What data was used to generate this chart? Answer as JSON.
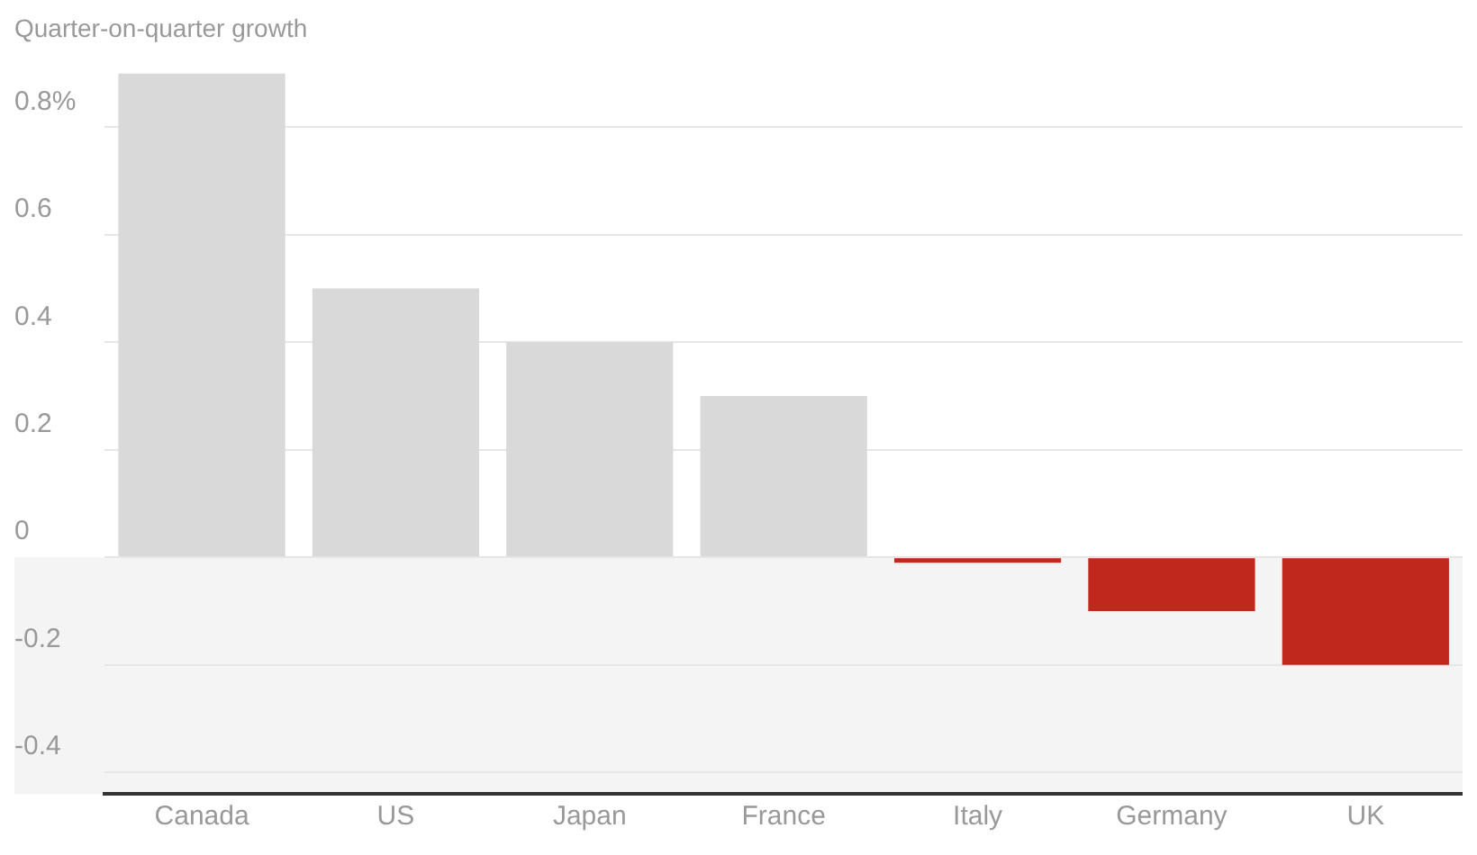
{
  "chart_data": {
    "type": "bar",
    "title": "Quarter-on-quarter growth",
    "categories": [
      "Canada",
      "US",
      "Japan",
      "France",
      "Italy",
      "Germany",
      "UK"
    ],
    "values": [
      0.9,
      0.5,
      0.4,
      0.3,
      -0.01,
      -0.1,
      -0.2
    ],
    "colors": [
      "#d9d9d9",
      "#d9d9d9",
      "#d9d9d9",
      "#d9d9d9",
      "#c0281e",
      "#c0281e",
      "#c0281e"
    ],
    "ylim": [
      -0.44,
      0.9
    ],
    "yticks": [
      -0.4,
      -0.2,
      0,
      0.2,
      0.4,
      0.6,
      {
        "value": 0.8,
        "label": "0.8%"
      }
    ],
    "bands": [
      {
        "axis": "y",
        "from": -0.44,
        "to": 0,
        "color": "#f4f4f4"
      }
    ],
    "grid": "y",
    "legend": false
  }
}
